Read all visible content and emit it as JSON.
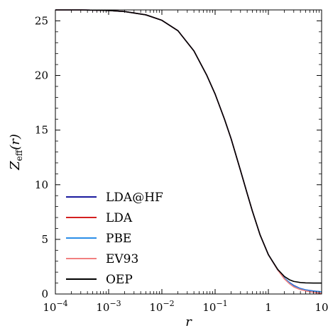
{
  "chart_data": {
    "type": "line",
    "xscale": "log",
    "xlim": [
      0.0001,
      10
    ],
    "ylim": [
      0,
      26
    ],
    "xlabel": "r",
    "ylabel": {
      "main": "Z",
      "sub": "eff",
      "arg": "(r)"
    },
    "legend_position": "lower-left",
    "grid": false,
    "x_ticks": [
      {
        "value": 0.0001,
        "base": "10",
        "exp": "−4"
      },
      {
        "value": 0.001,
        "base": "10",
        "exp": "−3"
      },
      {
        "value": 0.01,
        "base": "10",
        "exp": "−2"
      },
      {
        "value": 0.1,
        "base": "10",
        "exp": "−1"
      },
      {
        "value": 1,
        "base": "1",
        "exp": ""
      },
      {
        "value": 10,
        "base": "10",
        "exp": ""
      }
    ],
    "y_ticks": [
      {
        "value": 0,
        "label": "0"
      },
      {
        "value": 5,
        "label": "5"
      },
      {
        "value": 10,
        "label": "10"
      },
      {
        "value": 15,
        "label": "15"
      },
      {
        "value": 20,
        "label": "20"
      },
      {
        "value": 25,
        "label": "25"
      }
    ],
    "y_minor_ticks": [
      1,
      2,
      3,
      4,
      6,
      7,
      8,
      9,
      11,
      12,
      13,
      14,
      16,
      17,
      18,
      19,
      21,
      22,
      23,
      24
    ],
    "series": [
      {
        "name": "LDA@HF",
        "color": "#1a1a9e",
        "x": [
          0.0001,
          0.0003,
          0.001,
          0.002,
          0.005,
          0.01,
          0.02,
          0.04,
          0.07,
          0.1,
          0.15,
          0.2,
          0.3,
          0.4,
          0.5,
          0.7,
          1.0,
          1.5,
          2.0,
          2.5,
          3.0,
          4.0,
          5.0,
          7.0,
          10.0
        ],
        "y": [
          26.0,
          26.0,
          25.95,
          25.85,
          25.55,
          25.05,
          24.1,
          22.25,
          20.0,
          18.3,
          16.0,
          14.2,
          11.3,
          9.2,
          7.6,
          5.4,
          3.6,
          2.2,
          1.45,
          1.05,
          0.78,
          0.5,
          0.38,
          0.27,
          0.2
        ]
      },
      {
        "name": "LDA",
        "color": "#d42020",
        "x": [
          0.0001,
          0.0003,
          0.001,
          0.002,
          0.005,
          0.01,
          0.02,
          0.04,
          0.07,
          0.1,
          0.15,
          0.2,
          0.3,
          0.4,
          0.5,
          0.7,
          1.0,
          1.5,
          2.0,
          2.5,
          3.0,
          4.0,
          5.0,
          7.0,
          10.0
        ],
        "y": [
          26.0,
          26.0,
          25.95,
          25.85,
          25.55,
          25.05,
          24.1,
          22.25,
          20.0,
          18.3,
          16.0,
          14.2,
          11.3,
          9.2,
          7.6,
          5.4,
          3.6,
          2.2,
          1.4,
          0.97,
          0.68,
          0.42,
          0.3,
          0.17,
          0.05
        ]
      },
      {
        "name": "PBE",
        "color": "#2b8ee8",
        "x": [
          0.0001,
          0.0003,
          0.001,
          0.002,
          0.005,
          0.01,
          0.02,
          0.04,
          0.07,
          0.1,
          0.15,
          0.2,
          0.3,
          0.4,
          0.5,
          0.7,
          1.0,
          1.5,
          2.0,
          2.5,
          3.0,
          4.0,
          5.0,
          7.0,
          10.0
        ],
        "y": [
          26.0,
          26.0,
          25.95,
          25.85,
          25.55,
          25.05,
          24.1,
          22.25,
          20.0,
          18.3,
          16.0,
          14.2,
          11.3,
          9.2,
          7.6,
          5.4,
          3.6,
          2.2,
          1.45,
          1.02,
          0.74,
          0.48,
          0.36,
          0.26,
          0.2
        ]
      },
      {
        "name": "EV93",
        "color": "#f28080",
        "x": [
          0.0001,
          0.0003,
          0.001,
          0.002,
          0.005,
          0.01,
          0.02,
          0.04,
          0.07,
          0.1,
          0.15,
          0.2,
          0.3,
          0.4,
          0.5,
          0.7,
          1.0,
          1.5,
          2.0,
          2.5,
          3.0,
          4.0,
          5.0,
          7.0,
          10.0
        ],
        "y": [
          26.0,
          26.0,
          25.95,
          25.85,
          25.55,
          25.05,
          24.1,
          22.25,
          20.0,
          18.3,
          16.0,
          14.2,
          11.3,
          9.2,
          7.6,
          5.4,
          3.6,
          2.2,
          1.38,
          0.93,
          0.65,
          0.4,
          0.29,
          0.16,
          0.08
        ]
      },
      {
        "name": "OEP",
        "color": "#000000",
        "x": [
          0.0001,
          0.0003,
          0.001,
          0.002,
          0.005,
          0.01,
          0.02,
          0.04,
          0.07,
          0.1,
          0.15,
          0.2,
          0.3,
          0.4,
          0.5,
          0.7,
          1.0,
          1.5,
          2.0,
          2.5,
          3.0,
          4.0,
          5.0,
          7.0,
          10.0
        ],
        "y": [
          26.0,
          26.0,
          25.95,
          25.85,
          25.55,
          25.05,
          24.1,
          22.25,
          20.0,
          18.3,
          16.0,
          14.2,
          11.3,
          9.2,
          7.6,
          5.4,
          3.6,
          2.25,
          1.6,
          1.3,
          1.15,
          1.05,
          1.02,
          1.0,
          1.0
        ]
      }
    ]
  }
}
